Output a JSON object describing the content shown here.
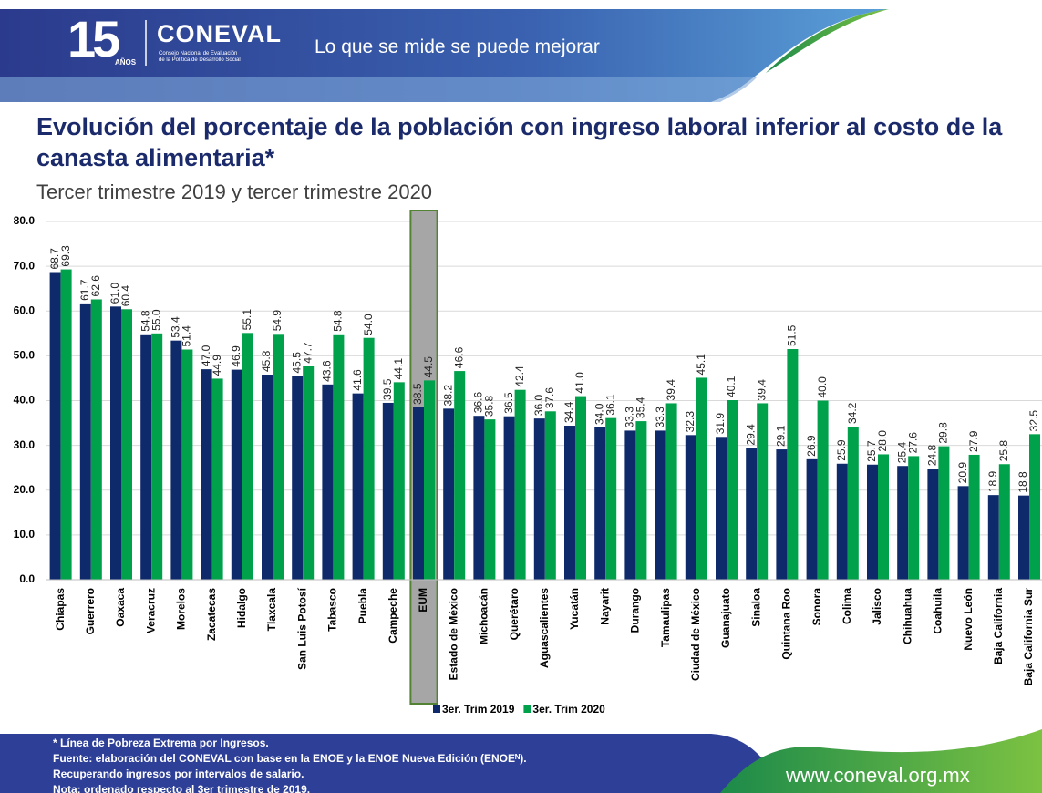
{
  "header": {
    "logo_number": "15",
    "logo_years": "AÑOS",
    "brand": "CONEVAL",
    "brand_sub_1": "Consejo Nacional de Evaluación",
    "brand_sub_2": "de la Política de Desarrollo Social",
    "slogan": "Lo que se mide se puede mejorar"
  },
  "chart_data": {
    "type": "bar",
    "title": "Evolución del porcentaje de la población con ingreso laboral inferior al costo de la canasta alimentaria*",
    "subtitle": "Tercer trimestre 2019 y tercer trimestre 2020",
    "categories": [
      "Chiapas",
      "Guerrero",
      "Oaxaca",
      "Veracruz",
      "Morelos",
      "Zacatecas",
      "Hidalgo",
      "Tlaxcala",
      "San Luis Potosí",
      "Tabasco",
      "Puebla",
      "Campeche",
      "EUM",
      "Estado de México",
      "Michoacán",
      "Querétaro",
      "Aguascalientes",
      "Yucatán",
      "Nayarit",
      "Durango",
      "Tamaulipas",
      "Ciudad de México",
      "Guanajuato",
      "Sinaloa",
      "Quintana Roo",
      "Sonora",
      "Colima",
      "Jalisco",
      "Chihuahua",
      "Coahuila",
      "Nuevo León",
      "Baja California",
      "Baja California Sur"
    ],
    "series": [
      {
        "name": "3er. Trim 2019",
        "color": "#0e2a6b",
        "values": [
          68.7,
          61.7,
          61.0,
          54.8,
          53.4,
          47.0,
          46.9,
          45.8,
          45.5,
          43.6,
          41.6,
          39.5,
          38.5,
          38.2,
          36.6,
          36.5,
          36.0,
          34.4,
          34.0,
          33.3,
          33.3,
          32.3,
          31.9,
          29.4,
          29.1,
          26.9,
          25.9,
          25.7,
          25.4,
          24.8,
          20.9,
          18.9,
          18.8
        ],
        "value_labels": [
          "68.7",
          "61.7",
          "61.0",
          "54.8",
          "53.4",
          "47.0",
          "46.9",
          "45.8",
          "45.5",
          "43.6",
          "41.6",
          "39.5",
          "38.5",
          "38.2",
          "36.6",
          "36.5",
          "36.0",
          "34.4",
          "34.0",
          "33.3",
          "33.3",
          "32.3",
          "31.9",
          "29.4",
          "29.1",
          "26.9",
          "25.9",
          "25.7",
          "25.4",
          "24.8",
          "20.9",
          "18.9",
          "18.8"
        ]
      },
      {
        "name": "3er. Trim 2020",
        "color": "#00a14b",
        "values": [
          69.3,
          62.6,
          60.4,
          55.0,
          51.4,
          44.9,
          55.1,
          54.9,
          47.7,
          54.8,
          54.0,
          44.1,
          44.5,
          46.6,
          35.8,
          42.4,
          37.6,
          41.0,
          36.1,
          35.4,
          39.4,
          45.1,
          40.1,
          39.4,
          51.5,
          40.0,
          34.2,
          28.0,
          27.6,
          29.8,
          27.9,
          25.8,
          32.5
        ],
        "value_labels": [
          "69.3",
          "62.6",
          "60.4",
          "55.0",
          "51.4",
          "44.9",
          "55.1",
          "54.9",
          "47.7",
          "54.8",
          "54.0",
          "44.1",
          "44.5",
          "46.6",
          "35.8",
          "42.4",
          "37.6",
          "41.0",
          "36.1",
          "35.4",
          "39.4",
          "45.1",
          "40.1",
          "39.4",
          "51.5",
          "40.0",
          "34.2",
          "28.0",
          "27.6",
          "29.8",
          "27.9",
          "25.8",
          "32.5"
        ]
      }
    ],
    "ylim": [
      0,
      80
    ],
    "yticks": [
      {
        "value": 0,
        "label": "0.0"
      },
      {
        "value": 10,
        "label": "10.0"
      },
      {
        "value": 20,
        "label": "20.0"
      },
      {
        "value": 30,
        "label": "30.0"
      },
      {
        "value": 40,
        "label": "40.0"
      },
      {
        "value": 50,
        "label": "50.0"
      },
      {
        "value": 60,
        "label": "60.0"
      },
      {
        "value": 70,
        "label": "70.0"
      },
      {
        "value": 80,
        "label": "80.0"
      }
    ],
    "grid": true,
    "highlight": 12,
    "highlight_color": "#a6a6a6",
    "legend": "bottom"
  },
  "footer": {
    "notes": [
      "* Línea de Pobreza Extrema por Ingresos.",
      "Fuente: elaboración del CONEVAL con base en la ENOE y la ENOE Nueva Edición (ENOEᴺ).",
      "Recuperando ingresos  por intervalos de salario.",
      "Nota: ordenado respecto al 3er trimestre de 2019."
    ],
    "url": "www.coneval.org.mx"
  }
}
